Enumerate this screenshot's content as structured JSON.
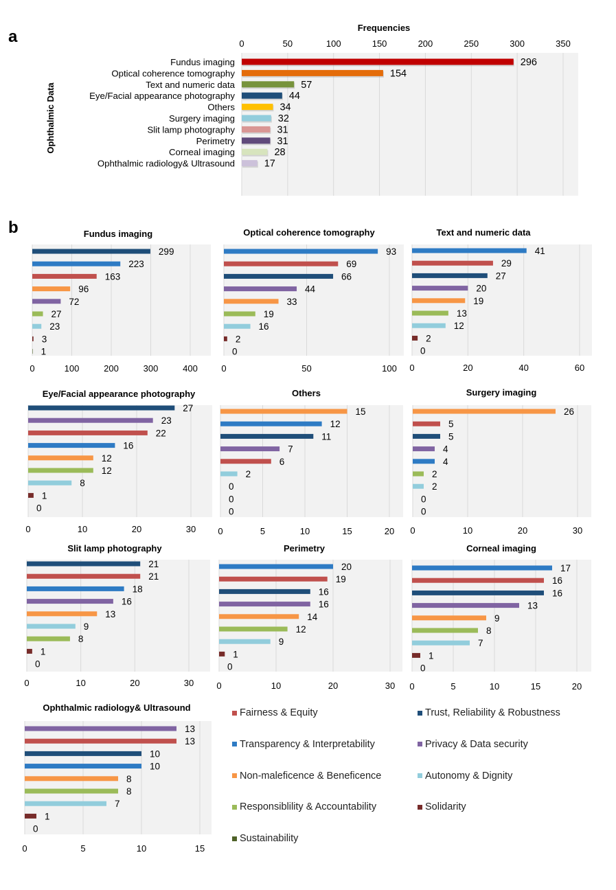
{
  "panels": {
    "a": "a",
    "b": "b"
  },
  "chart_data": [
    {
      "id": "overview",
      "type": "bar",
      "orientation": "horizontal",
      "title": "Frequencies",
      "xlabel": "Frequencies",
      "ylabel": "Ophthalmic Data",
      "xlim": [
        0,
        350
      ],
      "xticks": [
        0,
        50,
        100,
        150,
        200,
        250,
        300,
        350
      ],
      "grid": true,
      "categories": [
        "Fundus imaging",
        "Optical coherence tomography",
        "Text  and numeric data",
        "Eye/Facial appearance photography",
        "Others",
        "Surgery imaging",
        "Slit lamp photography",
        "Perimetry",
        "Corneal imaging",
        "Ophthalmic radiology& Ultrasound"
      ],
      "values": [
        296,
        154,
        57,
        44,
        34,
        32,
        31,
        31,
        28,
        17
      ],
      "colors": [
        "#c00000",
        "#e46c0a",
        "#77933c",
        "#1f4e79",
        "#ffc000",
        "#92cddc",
        "#d99694",
        "#604a7b",
        "#d7e4bd",
        "#ccc1da"
      ]
    },
    {
      "id": "fundus",
      "type": "bar",
      "orientation": "horizontal",
      "title": "Fundus imaging",
      "xlim": [
        0,
        450
      ],
      "xticks": [
        0,
        100,
        200,
        300,
        400
      ],
      "bars": [
        {
          "principle": "Trust, Reliability & Robustness",
          "value": 299
        },
        {
          "principle": "Transparency & Interpretability",
          "value": 223
        },
        {
          "principle": "Fairness & Equity",
          "value": 163
        },
        {
          "principle": "Non-maleficence & Beneficence",
          "value": 96
        },
        {
          "principle": "Privacy & Data security",
          "value": 72
        },
        {
          "principle": "Responsiblility & Accountability",
          "value": 27
        },
        {
          "principle": "Autonomy & Dignity",
          "value": 23
        },
        {
          "principle": "Solidarity",
          "value": 3
        },
        {
          "principle": "Sustainability",
          "value": 1
        }
      ]
    },
    {
      "id": "oct",
      "type": "bar",
      "orientation": "horizontal",
      "title": "Optical coherence tomography",
      "xlim": [
        0,
        110
      ],
      "xticks": [
        0,
        50,
        100
      ],
      "bars": [
        {
          "principle": "Transparency & Interpretability",
          "value": 93
        },
        {
          "principle": "Fairness & Equity",
          "value": 69
        },
        {
          "principle": "Trust, Reliability & Robustness",
          "value": 66
        },
        {
          "principle": "Privacy & Data security",
          "value": 44
        },
        {
          "principle": "Non-maleficence & Beneficence",
          "value": 33
        },
        {
          "principle": "Responsiblility & Accountability",
          "value": 19
        },
        {
          "principle": "Autonomy & Dignity",
          "value": 16
        },
        {
          "principle": "Solidarity",
          "value": 2
        },
        {
          "principle": "Sustainability",
          "value": 0
        }
      ]
    },
    {
      "id": "text",
      "type": "bar",
      "orientation": "horizontal",
      "title": "Text  and numeric data",
      "xlim": [
        0,
        65
      ],
      "xticks": [
        0,
        20,
        40,
        60
      ],
      "bars": [
        {
          "principle": "Transparency & Interpretability",
          "value": 41
        },
        {
          "principle": "Fairness & Equity",
          "value": 29
        },
        {
          "principle": "Trust, Reliability & Robustness",
          "value": 27
        },
        {
          "principle": "Privacy & Data security",
          "value": 20
        },
        {
          "principle": "Non-maleficence & Beneficence",
          "value": 19
        },
        {
          "principle": "Responsiblility & Accountability",
          "value": 13
        },
        {
          "principle": "Autonomy & Dignity",
          "value": 12
        },
        {
          "principle": "Solidarity",
          "value": 2
        },
        {
          "principle": "Sustainability",
          "value": 0
        }
      ]
    },
    {
      "id": "eye",
      "type": "bar",
      "orientation": "horizontal",
      "title": "Eye/Facial appearance photography",
      "xlim": [
        0,
        34
      ],
      "xticks": [
        0,
        10,
        20,
        30
      ],
      "bars": [
        {
          "principle": "Trust, Reliability & Robustness",
          "value": 27
        },
        {
          "principle": "Privacy & Data security",
          "value": 23
        },
        {
          "principle": "Fairness & Equity",
          "value": 22
        },
        {
          "principle": "Transparency & Interpretability",
          "value": 16
        },
        {
          "principle": "Non-maleficence & Beneficence",
          "value": 12
        },
        {
          "principle": "Responsiblility & Accountability",
          "value": 12
        },
        {
          "principle": "Autonomy & Dignity",
          "value": 8
        },
        {
          "principle": "Solidarity",
          "value": 1
        },
        {
          "principle": "Sustainability",
          "value": 0
        }
      ]
    },
    {
      "id": "others",
      "type": "bar",
      "orientation": "horizontal",
      "title": "Others",
      "xlim": [
        0,
        21.5
      ],
      "xticks": [
        0,
        5,
        10,
        15,
        20
      ],
      "bars": [
        {
          "principle": "Non-maleficence & Beneficence",
          "value": 15
        },
        {
          "principle": "Transparency & Interpretability",
          "value": 12
        },
        {
          "principle": "Trust, Reliability & Robustness",
          "value": 11
        },
        {
          "principle": "Privacy & Data security",
          "value": 7
        },
        {
          "principle": "Fairness & Equity",
          "value": 6
        },
        {
          "principle": "Autonomy & Dignity",
          "value": 2
        },
        {
          "principle": "Responsiblility & Accountability",
          "value": 0
        },
        {
          "principle": "Solidarity",
          "value": 0
        },
        {
          "principle": "Sustainability",
          "value": 0
        }
      ]
    },
    {
      "id": "surgery",
      "type": "bar",
      "orientation": "horizontal",
      "title": "Surgery imaging",
      "xlim": [
        0,
        32.5
      ],
      "xticks": [
        0,
        10,
        20,
        30
      ],
      "bars": [
        {
          "principle": "Non-maleficence & Beneficence",
          "value": 26
        },
        {
          "principle": "Fairness & Equity",
          "value": 5
        },
        {
          "principle": "Trust, Reliability & Robustness",
          "value": 5
        },
        {
          "principle": "Privacy & Data security",
          "value": 4
        },
        {
          "principle": "Transparency & Interpretability",
          "value": 4
        },
        {
          "principle": "Responsiblility & Accountability",
          "value": 2
        },
        {
          "principle": "Autonomy & Dignity",
          "value": 2
        },
        {
          "principle": "Solidarity",
          "value": 0
        },
        {
          "principle": "Sustainability",
          "value": 0
        }
      ]
    },
    {
      "id": "slit",
      "type": "bar",
      "orientation": "horizontal",
      "title": "Slit lamp photography",
      "xlim": [
        0,
        34
      ],
      "xticks": [
        0,
        10,
        20,
        30
      ],
      "bars": [
        {
          "principle": "Trust, Reliability & Robustness",
          "value": 21
        },
        {
          "principle": "Fairness & Equity",
          "value": 21
        },
        {
          "principle": "Transparency & Interpretability",
          "value": 18
        },
        {
          "principle": "Privacy & Data security",
          "value": 16
        },
        {
          "principle": "Non-maleficence & Beneficence",
          "value": 13
        },
        {
          "principle": "Autonomy & Dignity",
          "value": 9
        },
        {
          "principle": "Responsiblility & Accountability",
          "value": 8
        },
        {
          "principle": "Solidarity",
          "value": 1
        },
        {
          "principle": "Sustainability",
          "value": 0
        }
      ]
    },
    {
      "id": "perimetry",
      "type": "bar",
      "orientation": "horizontal",
      "title": "Perimetry",
      "xlim": [
        0,
        32
      ],
      "xticks": [
        0,
        10,
        20,
        30
      ],
      "bars": [
        {
          "principle": "Transparency & Interpretability",
          "value": 20
        },
        {
          "principle": "Fairness & Equity",
          "value": 19
        },
        {
          "principle": "Trust, Reliability & Robustness",
          "value": 16
        },
        {
          "principle": "Privacy & Data security",
          "value": 16
        },
        {
          "principle": "Non-maleficence & Beneficence",
          "value": 14
        },
        {
          "principle": "Responsiblility & Accountability",
          "value": 12
        },
        {
          "principle": "Autonomy & Dignity",
          "value": 9
        },
        {
          "principle": "Solidarity",
          "value": 1
        },
        {
          "principle": "Sustainability",
          "value": 0
        }
      ]
    },
    {
      "id": "corneal",
      "type": "bar",
      "orientation": "horizontal",
      "title": "Corneal imaging",
      "xlim": [
        0,
        21.8
      ],
      "xticks": [
        0,
        5,
        10,
        15,
        20
      ],
      "bars": [
        {
          "principle": "Transparency & Interpretability",
          "value": 17
        },
        {
          "principle": "Fairness & Equity",
          "value": 16
        },
        {
          "principle": "Trust, Reliability & Robustness",
          "value": 16
        },
        {
          "principle": "Privacy & Data security",
          "value": 13
        },
        {
          "principle": "Non-maleficence & Beneficence",
          "value": 9
        },
        {
          "principle": "Responsiblility & Accountability",
          "value": 8
        },
        {
          "principle": "Autonomy & Dignity",
          "value": 7
        },
        {
          "principle": "Solidarity",
          "value": 1
        },
        {
          "principle": "Sustainability",
          "value": 0
        }
      ]
    },
    {
      "id": "radiology",
      "type": "bar",
      "orientation": "horizontal",
      "title": "Ophthalmic radiology& Ultrasound",
      "xlim": [
        0,
        16
      ],
      "xticks": [
        0,
        5,
        10,
        15
      ],
      "bars": [
        {
          "principle": "Privacy & Data security",
          "value": 13
        },
        {
          "principle": "Fairness & Equity",
          "value": 13
        },
        {
          "principle": "Trust, Reliability & Robustness",
          "value": 10
        },
        {
          "principle": "Transparency & Interpretability",
          "value": 10
        },
        {
          "principle": "Non-maleficence & Beneficence",
          "value": 8
        },
        {
          "principle": "Responsiblility & Accountability",
          "value": 8
        },
        {
          "principle": "Autonomy & Dignity",
          "value": 7
        },
        {
          "principle": "Solidarity",
          "value": 1
        },
        {
          "principle": "Sustainability",
          "value": 0
        }
      ]
    }
  ],
  "legend": {
    "placement": "bottom-right",
    "items": [
      {
        "label": "Fairness & Equity",
        "color": "#c0504d"
      },
      {
        "label": "Trust, Reliability & Robustness",
        "color": "#1f4e79"
      },
      {
        "label": "Transparency & Interpretability",
        "color": "#2e7bc4"
      },
      {
        "label": "Privacy & Data security",
        "color": "#8064a2"
      },
      {
        "label": "Non-maleficence & Beneficence",
        "color": "#f79646"
      },
      {
        "label": "Autonomy & Dignity",
        "color": "#92cddc"
      },
      {
        "label": "Responsiblility & Accountability",
        "color": "#9bbb59"
      },
      {
        "label": "Solidarity",
        "color": "#772c2a"
      },
      {
        "label": "Sustainability",
        "color": "#4f6228"
      }
    ]
  }
}
